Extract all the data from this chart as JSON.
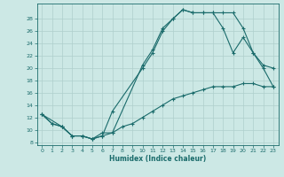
{
  "xlabel": "Humidex (Indice chaleur)",
  "bg_color": "#cce8e5",
  "line_color": "#1a6b6b",
  "grid_color": "#aecfcc",
  "xlim": [
    -0.5,
    23.5
  ],
  "ylim": [
    7.5,
    30.5
  ],
  "xticks": [
    0,
    1,
    2,
    3,
    4,
    5,
    6,
    7,
    8,
    9,
    10,
    11,
    12,
    13,
    14,
    15,
    16,
    17,
    18,
    19,
    20,
    21,
    22,
    23
  ],
  "yticks": [
    8,
    10,
    12,
    14,
    16,
    18,
    20,
    22,
    24,
    26,
    28
  ],
  "curve1_x": [
    0,
    1,
    2,
    3,
    4,
    5,
    6,
    7,
    8,
    9,
    10,
    11,
    12,
    13,
    14,
    15,
    16,
    17,
    18,
    19,
    20,
    21,
    22,
    23
  ],
  "curve1_y": [
    12.5,
    11.0,
    10.5,
    9.0,
    9.0,
    8.5,
    9.5,
    9.5,
    10.5,
    11.0,
    12.0,
    13.0,
    14.0,
    15.0,
    15.5,
    16.0,
    16.5,
    17.0,
    17.0,
    17.0,
    17.5,
    17.5,
    17.0,
    17.0
  ],
  "curve2_x": [
    0,
    2,
    3,
    4,
    5,
    6,
    7,
    10,
    11,
    12,
    13,
    14,
    15,
    16,
    17,
    18,
    19,
    20,
    21,
    22,
    23
  ],
  "curve2_y": [
    12.5,
    10.5,
    9.0,
    9.0,
    8.5,
    9.0,
    13.0,
    20.0,
    22.5,
    26.0,
    28.0,
    29.5,
    29.0,
    29.0,
    29.0,
    26.5,
    22.5,
    25.0,
    22.5,
    20.5,
    20.0
  ],
  "curve3_x": [
    0,
    1,
    2,
    3,
    4,
    5,
    6,
    7,
    10,
    11,
    12,
    13,
    14,
    15,
    16,
    17,
    18,
    19,
    20,
    21,
    22,
    23
  ],
  "curve3_y": [
    12.5,
    11.0,
    10.5,
    9.0,
    9.0,
    8.5,
    9.0,
    9.5,
    20.5,
    23.0,
    26.5,
    28.0,
    29.5,
    29.0,
    29.0,
    29.0,
    29.0,
    29.0,
    26.5,
    22.5,
    20.0,
    17.0
  ]
}
